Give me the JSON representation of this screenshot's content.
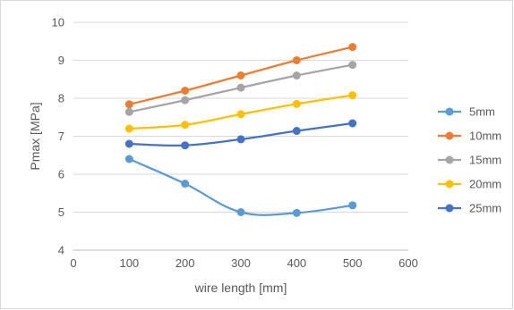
{
  "chart_data": {
    "type": "line",
    "title": "",
    "xlabel": "wire length [mm]",
    "ylabel": "Pmax [MPa]",
    "xlim": [
      0,
      600
    ],
    "ylim": [
      4,
      10
    ],
    "x_ticks": [
      0,
      100,
      200,
      300,
      400,
      500,
      600
    ],
    "y_ticks": [
      4,
      5,
      6,
      7,
      8,
      9,
      10
    ],
    "grid": "horizontal",
    "legend_position": "right",
    "smooth": true,
    "x": [
      100,
      200,
      300,
      400,
      500
    ],
    "series": [
      {
        "name": "5mm",
        "color": "#5B9BD5",
        "values": [
          6.4,
          5.75,
          5.0,
          4.98,
          5.18
        ]
      },
      {
        "name": "10mm",
        "color": "#ED7D31",
        "values": [
          7.84,
          8.2,
          8.6,
          9.0,
          9.35
        ]
      },
      {
        "name": "15mm",
        "color": "#A5A5A5",
        "values": [
          7.64,
          7.95,
          8.28,
          8.6,
          8.88
        ]
      },
      {
        "name": "20mm",
        "color": "#FFC000",
        "values": [
          7.2,
          7.3,
          7.58,
          7.85,
          8.08
        ]
      },
      {
        "name": "25mm",
        "color": "#4472C4",
        "values": [
          6.8,
          6.76,
          6.92,
          7.14,
          7.34
        ]
      }
    ]
  }
}
